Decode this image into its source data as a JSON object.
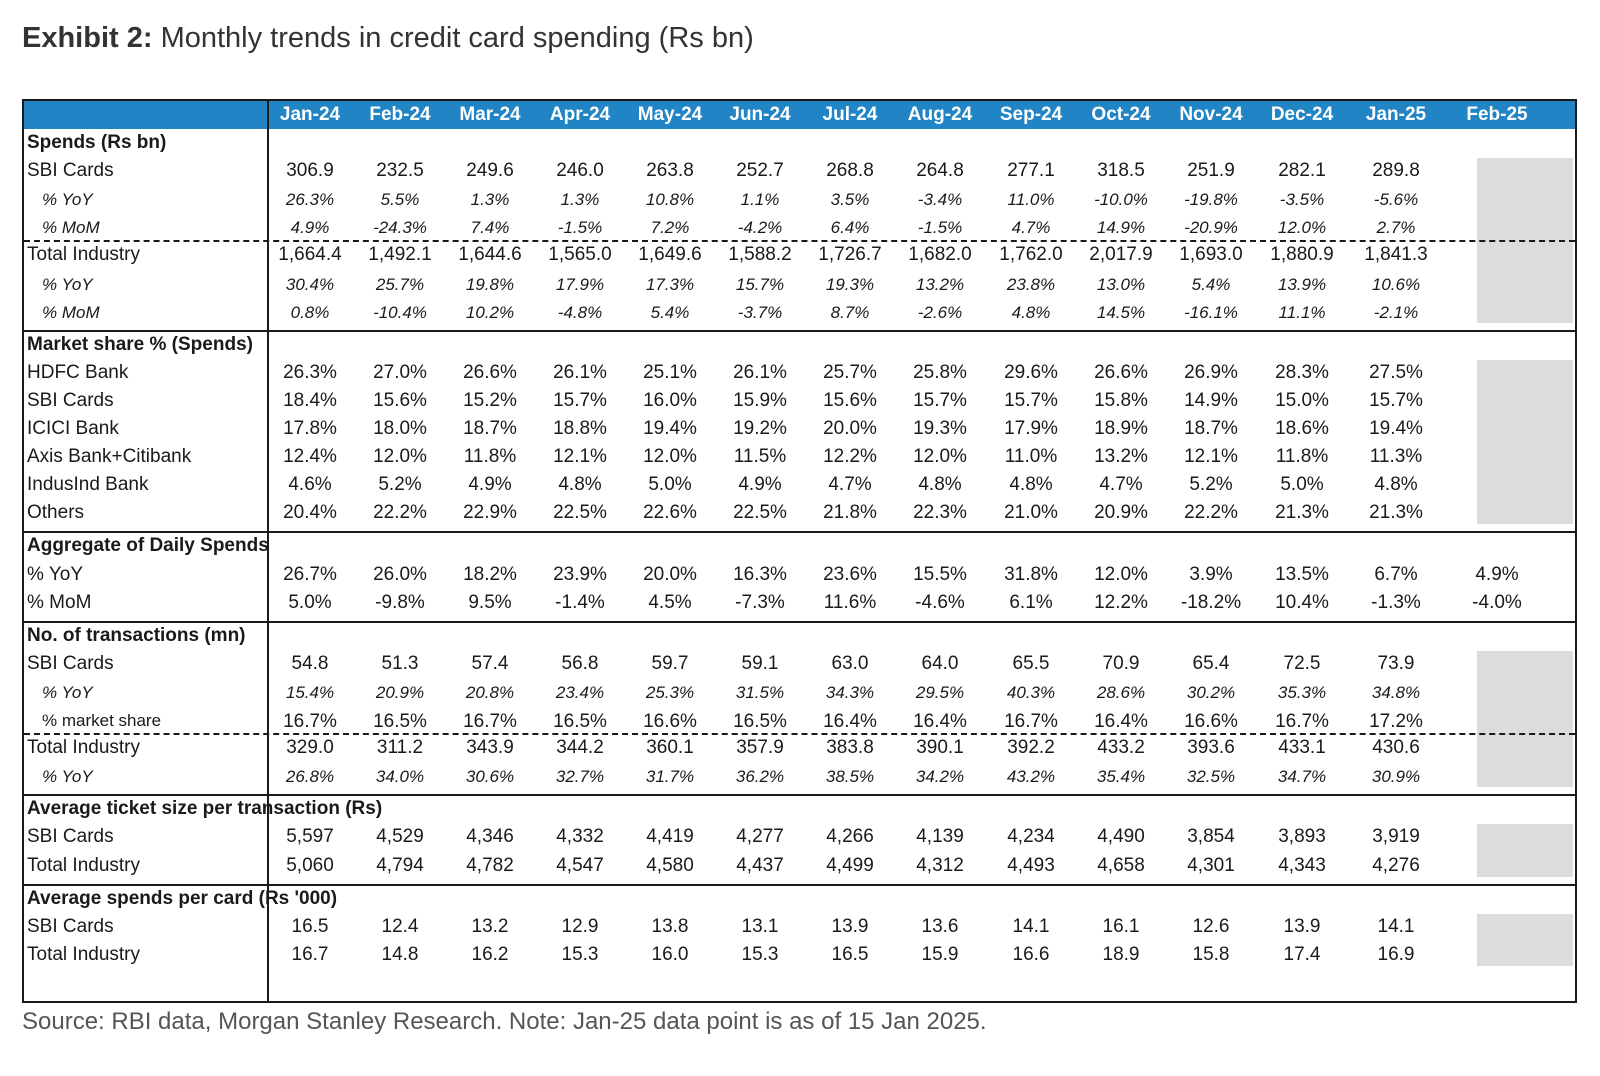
{
  "title": {
    "bold": "Exhibit 2:",
    "rest": " Monthly trends in credit card spending (Rs bn)"
  },
  "colors": {
    "header_bg": "#2084c5",
    "na_fill": "#dcdcdc"
  },
  "months": [
    "Jan-24",
    "Feb-24",
    "Mar-24",
    "Apr-24",
    "May-24",
    "Jun-24",
    "Jul-24",
    "Aug-24",
    "Sep-24",
    "Oct-24",
    "Nov-24",
    "Dec-24",
    "Jan-25",
    "Feb-25"
  ],
  "sections": [
    {
      "heading": "Spends (Rs bn)",
      "rows": [
        {
          "label": "SBI Cards",
          "style": "main",
          "values": [
            "306.9",
            "232.5",
            "249.6",
            "246.0",
            "263.8",
            "252.7",
            "268.8",
            "264.8",
            "277.1",
            "318.5",
            "251.9",
            "282.1",
            "289.8",
            ""
          ]
        },
        {
          "label": "% YoY",
          "style": "sub",
          "values": [
            "26.3%",
            "5.5%",
            "1.3%",
            "1.3%",
            "10.8%",
            "1.1%",
            "3.5%",
            "-3.4%",
            "11.0%",
            "-10.0%",
            "-19.8%",
            "-3.5%",
            "-5.6%",
            ""
          ]
        },
        {
          "label": "% MoM",
          "style": "sub",
          "values": [
            "4.9%",
            "-24.3%",
            "7.4%",
            "-1.5%",
            "7.2%",
            "-4.2%",
            "6.4%",
            "-1.5%",
            "4.7%",
            "14.9%",
            "-20.9%",
            "12.0%",
            "2.7%",
            ""
          ]
        },
        {
          "label": "Total Industry",
          "style": "main",
          "values": [
            "1,664.4",
            "1,492.1",
            "1,644.6",
            "1,565.0",
            "1,649.6",
            "1,588.2",
            "1,726.7",
            "1,682.0",
            "1,762.0",
            "2,017.9",
            "1,693.0",
            "1,880.9",
            "1,841.3",
            ""
          ]
        },
        {
          "label": "% YoY",
          "style": "sub",
          "values": [
            "30.4%",
            "25.7%",
            "19.8%",
            "17.9%",
            "17.3%",
            "15.7%",
            "19.3%",
            "13.2%",
            "23.8%",
            "13.0%",
            "5.4%",
            "13.9%",
            "10.6%",
            ""
          ]
        },
        {
          "label": "% MoM",
          "style": "sub",
          "values": [
            "0.8%",
            "-10.4%",
            "10.2%",
            "-4.8%",
            "5.4%",
            "-3.7%",
            "8.7%",
            "-2.6%",
            "4.8%",
            "14.5%",
            "-16.1%",
            "11.1%",
            "-2.1%",
            ""
          ]
        }
      ]
    },
    {
      "heading": "Market share % (Spends)",
      "rows": [
        {
          "label": "HDFC Bank",
          "style": "main",
          "values": [
            "26.3%",
            "27.0%",
            "26.6%",
            "26.1%",
            "25.1%",
            "26.1%",
            "25.7%",
            "25.8%",
            "29.6%",
            "26.6%",
            "26.9%",
            "28.3%",
            "27.5%",
            ""
          ]
        },
        {
          "label": "SBI Cards",
          "style": "main",
          "values": [
            "18.4%",
            "15.6%",
            "15.2%",
            "15.7%",
            "16.0%",
            "15.9%",
            "15.6%",
            "15.7%",
            "15.7%",
            "15.8%",
            "14.9%",
            "15.0%",
            "15.7%",
            ""
          ]
        },
        {
          "label": "ICICI Bank",
          "style": "main",
          "values": [
            "17.8%",
            "18.0%",
            "18.7%",
            "18.8%",
            "19.4%",
            "19.2%",
            "20.0%",
            "19.3%",
            "17.9%",
            "18.9%",
            "18.7%",
            "18.6%",
            "19.4%",
            ""
          ]
        },
        {
          "label": "Axis Bank+Citibank",
          "style": "main",
          "values": [
            "12.4%",
            "12.0%",
            "11.8%",
            "12.1%",
            "12.0%",
            "11.5%",
            "12.2%",
            "12.0%",
            "11.0%",
            "13.2%",
            "12.1%",
            "11.8%",
            "11.3%",
            ""
          ]
        },
        {
          "label": "IndusInd Bank",
          "style": "main",
          "values": [
            "4.6%",
            "5.2%",
            "4.9%",
            "4.8%",
            "5.0%",
            "4.9%",
            "4.7%",
            "4.8%",
            "4.8%",
            "4.7%",
            "5.2%",
            "5.0%",
            "4.8%",
            ""
          ]
        },
        {
          "label": "Others",
          "style": "main",
          "values": [
            "20.4%",
            "22.2%",
            "22.9%",
            "22.5%",
            "22.6%",
            "22.5%",
            "21.8%",
            "22.3%",
            "21.0%",
            "20.9%",
            "22.2%",
            "21.3%",
            "21.3%",
            ""
          ]
        }
      ]
    },
    {
      "heading": "Aggregate of Daily Spends",
      "rows": [
        {
          "label": "% YoY",
          "style": "main",
          "values": [
            "26.7%",
            "26.0%",
            "18.2%",
            "23.9%",
            "20.0%",
            "16.3%",
            "23.6%",
            "15.5%",
            "31.8%",
            "12.0%",
            "3.9%",
            "13.5%",
            "6.7%",
            "4.9%"
          ]
        },
        {
          "label": "% MoM",
          "style": "main",
          "values": [
            "5.0%",
            "-9.8%",
            "9.5%",
            "-1.4%",
            "4.5%",
            "-7.3%",
            "11.6%",
            "-4.6%",
            "6.1%",
            "12.2%",
            "-18.2%",
            "10.4%",
            "-1.3%",
            "-4.0%"
          ]
        }
      ]
    },
    {
      "heading": "No. of transactions (mn)",
      "rows": [
        {
          "label": "SBI Cards",
          "style": "main",
          "values": [
            "54.8",
            "51.3",
            "57.4",
            "56.8",
            "59.7",
            "59.1",
            "63.0",
            "64.0",
            "65.5",
            "70.9",
            "65.4",
            "72.5",
            "73.9",
            ""
          ]
        },
        {
          "label": "% YoY",
          "style": "sub",
          "values": [
            "15.4%",
            "20.9%",
            "20.8%",
            "23.4%",
            "25.3%",
            "31.5%",
            "34.3%",
            "29.5%",
            "40.3%",
            "28.6%",
            "30.2%",
            "35.3%",
            "34.8%",
            ""
          ]
        },
        {
          "label": "% market share",
          "style": "subplain",
          "values": [
            "16.7%",
            "16.5%",
            "16.7%",
            "16.5%",
            "16.6%",
            "16.5%",
            "16.4%",
            "16.4%",
            "16.7%",
            "16.4%",
            "16.6%",
            "16.7%",
            "17.2%",
            ""
          ]
        },
        {
          "label": "Total Industry",
          "style": "main",
          "values": [
            "329.0",
            "311.2",
            "343.9",
            "344.2",
            "360.1",
            "357.9",
            "383.8",
            "390.1",
            "392.2",
            "433.2",
            "393.6",
            "433.1",
            "430.6",
            ""
          ]
        },
        {
          "label": "% YoY",
          "style": "sub",
          "values": [
            "26.8%",
            "34.0%",
            "30.6%",
            "32.7%",
            "31.7%",
            "36.2%",
            "38.5%",
            "34.2%",
            "43.2%",
            "35.4%",
            "32.5%",
            "34.7%",
            "30.9%",
            ""
          ]
        }
      ]
    },
    {
      "heading": "Average ticket size per transaction (Rs)",
      "rows": [
        {
          "label": "SBI Cards",
          "style": "main",
          "values": [
            "5,597",
            "4,529",
            "4,346",
            "4,332",
            "4,419",
            "4,277",
            "4,266",
            "4,139",
            "4,234",
            "4,490",
            "3,854",
            "3,893",
            "3,919",
            ""
          ]
        },
        {
          "label": "Total Industry",
          "style": "main",
          "values": [
            "5,060",
            "4,794",
            "4,782",
            "4,547",
            "4,580",
            "4,437",
            "4,499",
            "4,312",
            "4,493",
            "4,658",
            "4,301",
            "4,343",
            "4,276",
            ""
          ]
        }
      ]
    },
    {
      "heading": "Average spends per card (Rs '000)",
      "rows": [
        {
          "label": "SBI Cards",
          "style": "main",
          "values": [
            "16.5",
            "12.4",
            "13.2",
            "12.9",
            "13.8",
            "13.1",
            "13.9",
            "13.6",
            "14.1",
            "16.1",
            "12.6",
            "13.9",
            "14.1",
            ""
          ]
        },
        {
          "label": "Total Industry",
          "style": "main",
          "values": [
            "16.7",
            "14.8",
            "16.2",
            "15.3",
            "16.0",
            "15.3",
            "16.5",
            "15.9",
            "16.6",
            "18.9",
            "15.8",
            "17.4",
            "16.9",
            ""
          ]
        }
      ]
    }
  ],
  "source": "Source: RBI data, Morgan Stanley Research. Note: Jan-25 data point is as of 15 Jan 2025."
}
